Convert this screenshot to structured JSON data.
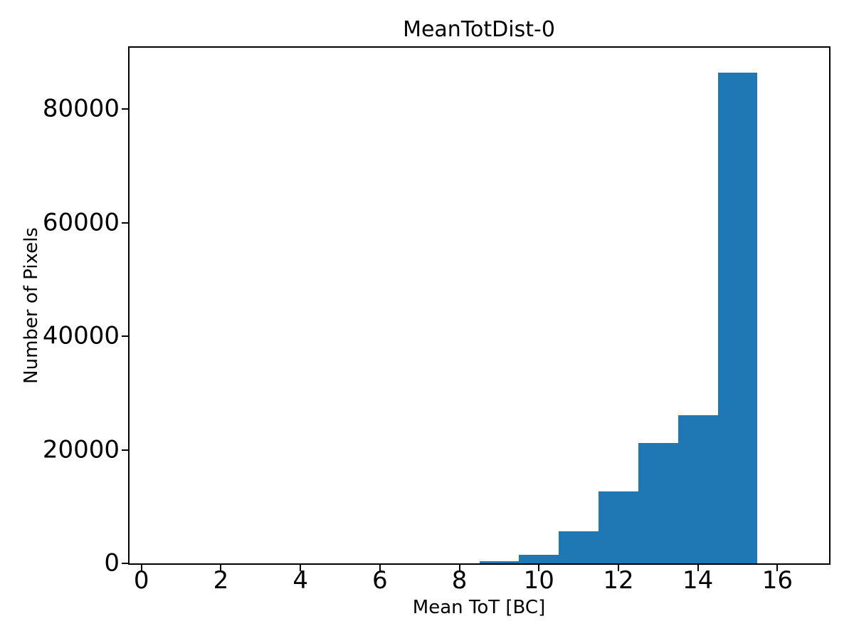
{
  "figure": {
    "background": "#ffffff",
    "text_color": "#000000"
  },
  "chart_data": {
    "type": "bar",
    "title": "MeanTotDist-0",
    "xlabel": "Mean ToT [BC]",
    "ylabel": "Number of Pixels",
    "bar_color": "#1f77b4",
    "bin_edges": [
      8.5,
      9.5,
      10.5,
      11.5,
      12.5,
      13.5,
      14.5,
      15.5
    ],
    "values": [
      400,
      1500,
      5600,
      12700,
      21200,
      26100,
      86400
    ],
    "xlim": [
      -0.3,
      17.3
    ],
    "ylim": [
      0,
      90800
    ],
    "xticks": [
      0,
      2,
      4,
      6,
      8,
      10,
      12,
      14,
      16
    ],
    "yticks": [
      0,
      20000,
      40000,
      60000,
      80000
    ],
    "grid": false,
    "legend": null
  }
}
